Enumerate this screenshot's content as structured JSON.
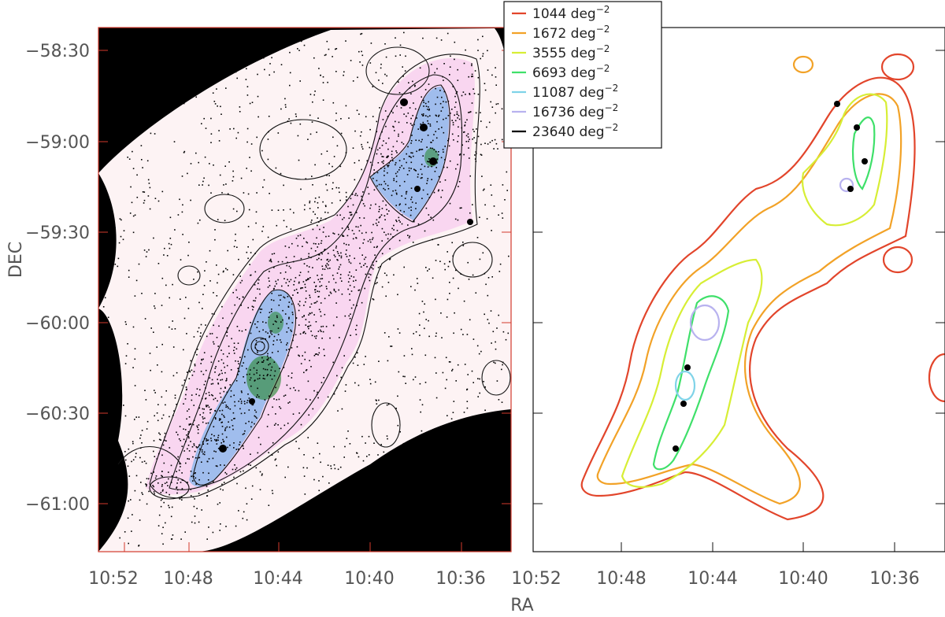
{
  "chart_data": [
    {
      "type": "scatter",
      "panel": "left",
      "description_kind": "star-density-map-with-contours",
      "xlabel": "RA",
      "ylabel": "DEC",
      "x_ticks": [
        "10:52",
        "10:48",
        "10:44",
        "10:40",
        "10:36"
      ],
      "y_ticks": [
        "-58:30",
        "-59:00",
        "-59:30",
        "-60:00",
        "-60:30",
        "-61:00"
      ],
      "xlim_hours": [
        10.883,
        10.55
      ],
      "ylim_deg": [
        -61.25,
        -58.4
      ],
      "masked_regions_color": "#000000",
      "density_colors": [
        "#fff4f6",
        "#f6c9ef",
        "#8fb4ea",
        "#2f8a3a"
      ],
      "frame_color": "#d33a2c"
    },
    {
      "type": "contour",
      "panel": "right",
      "xlabel": "RA",
      "x_ticks": [
        "10:52",
        "10:48",
        "10:44",
        "10:40",
        "10:36"
      ],
      "legend": [
        {
          "value": "1044",
          "unit": "deg",
          "exp": "−2",
          "color": "#e2452b"
        },
        {
          "value": "1672",
          "unit": "deg",
          "exp": "−2",
          "color": "#f2a227"
        },
        {
          "value": "3555",
          "unit": "deg",
          "exp": "−2",
          "color": "#d7ee35"
        },
        {
          "value": "6693",
          "unit": "deg",
          "exp": "−2",
          "color": "#3fe06a"
        },
        {
          "value": "11087",
          "unit": "deg",
          "exp": "−2",
          "color": "#7fd3e8"
        },
        {
          "value": "16736",
          "unit": "deg",
          "exp": "−2",
          "color": "#b8b2ef"
        },
        {
          "value": "23640",
          "unit": "deg",
          "exp": "−2",
          "color": "#000000"
        }
      ]
    }
  ]
}
